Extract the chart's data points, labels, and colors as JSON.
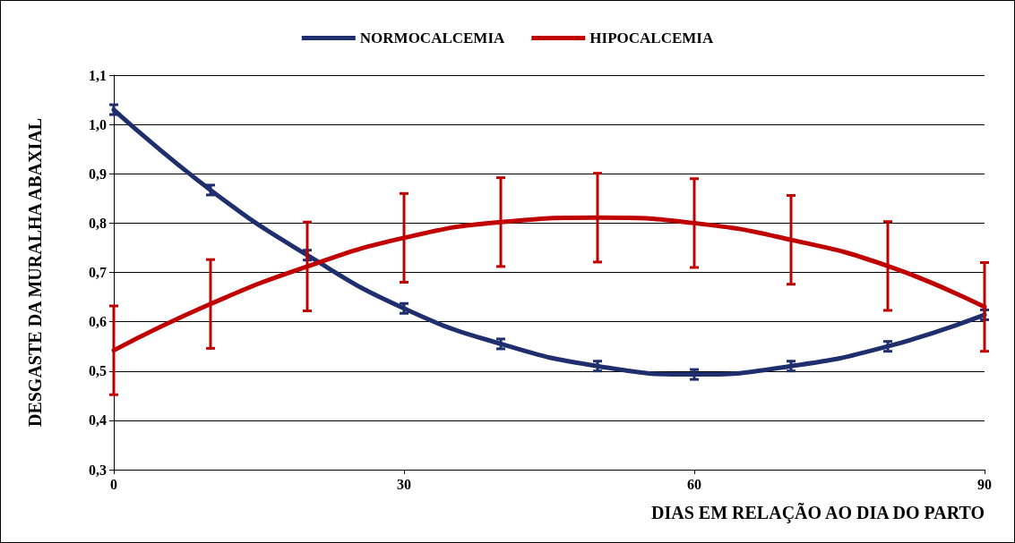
{
  "chart_data": {
    "type": "line",
    "xlabel": "DIAS EM RELAÇÃO AO DIA DO PARTO",
    "ylabel": "DESGASTE DA MURALHA ABAXIAL",
    "x": [
      0,
      10,
      20,
      30,
      40,
      50,
      60,
      70,
      80,
      90
    ],
    "xlim": [
      0,
      90
    ],
    "xticks": [
      0,
      30,
      60,
      90
    ],
    "ylim": [
      0.3,
      1.1
    ],
    "yticks": [
      {
        "value": 0.3,
        "label": "0,3"
      },
      {
        "value": 0.4,
        "label": "0,4"
      },
      {
        "value": 0.5,
        "label": "0,5"
      },
      {
        "value": 0.6,
        "label": "0,6"
      },
      {
        "value": 0.7,
        "label": "0,7"
      },
      {
        "value": 0.8,
        "label": "0,8"
      },
      {
        "value": 0.9,
        "label": "0,9"
      },
      {
        "value": 1.0,
        "label": "1,0"
      },
      {
        "value": 1.1,
        "label": "1,1"
      }
    ],
    "series": [
      {
        "name": "NORMOCALCEMIA",
        "color": "#1f2f6e",
        "values": [
          1.03,
          0.867,
          0.735,
          0.627,
          0.555,
          0.51,
          0.493,
          0.51,
          0.55,
          0.614
        ],
        "errors": [
          0.01,
          0.01,
          0.01,
          0.01,
          0.01,
          0.01,
          0.01,
          0.01,
          0.01,
          0.01
        ]
      },
      {
        "name": "HIPOCALCEMIA",
        "color": "#c00000",
        "values": [
          0.542,
          0.636,
          0.712,
          0.77,
          0.802,
          0.811,
          0.8,
          0.766,
          0.713,
          0.63
        ],
        "errors": [
          0.09,
          0.09,
          0.09,
          0.09,
          0.09,
          0.09,
          0.09,
          0.09,
          0.09,
          0.09
        ]
      }
    ],
    "grid": "y",
    "legend": "top",
    "marker": "none",
    "line_style": "solid"
  }
}
